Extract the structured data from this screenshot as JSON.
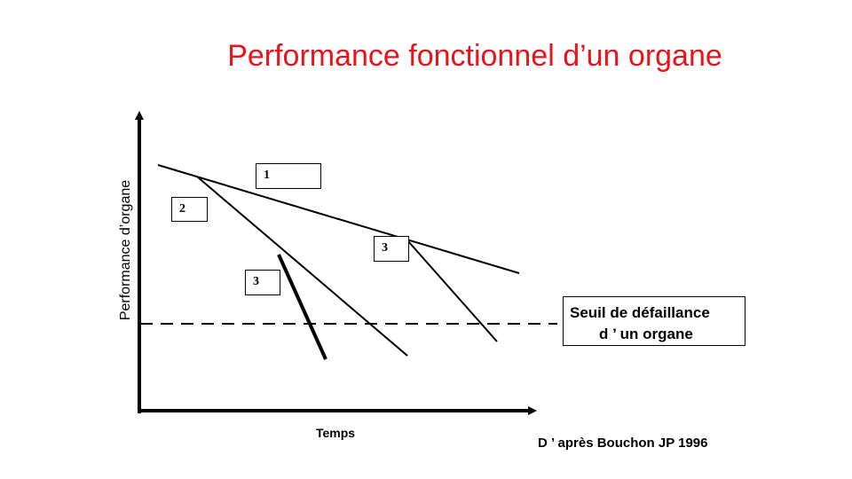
{
  "title": "Performance fonctionnel  d’un organe",
  "y_axis_label": "Performance d’organe",
  "x_axis_label": "Temps",
  "threshold": {
    "line1": "Seuil de défaillance",
    "line2": "d ’ un organe"
  },
  "curve_labels": [
    "1",
    "2",
    "3",
    "3"
  ],
  "credit": "D ’ après Bouchon JP 1996",
  "colors": {
    "title": "#e8141c",
    "lines": "#000000",
    "background": "#ffffff"
  }
}
